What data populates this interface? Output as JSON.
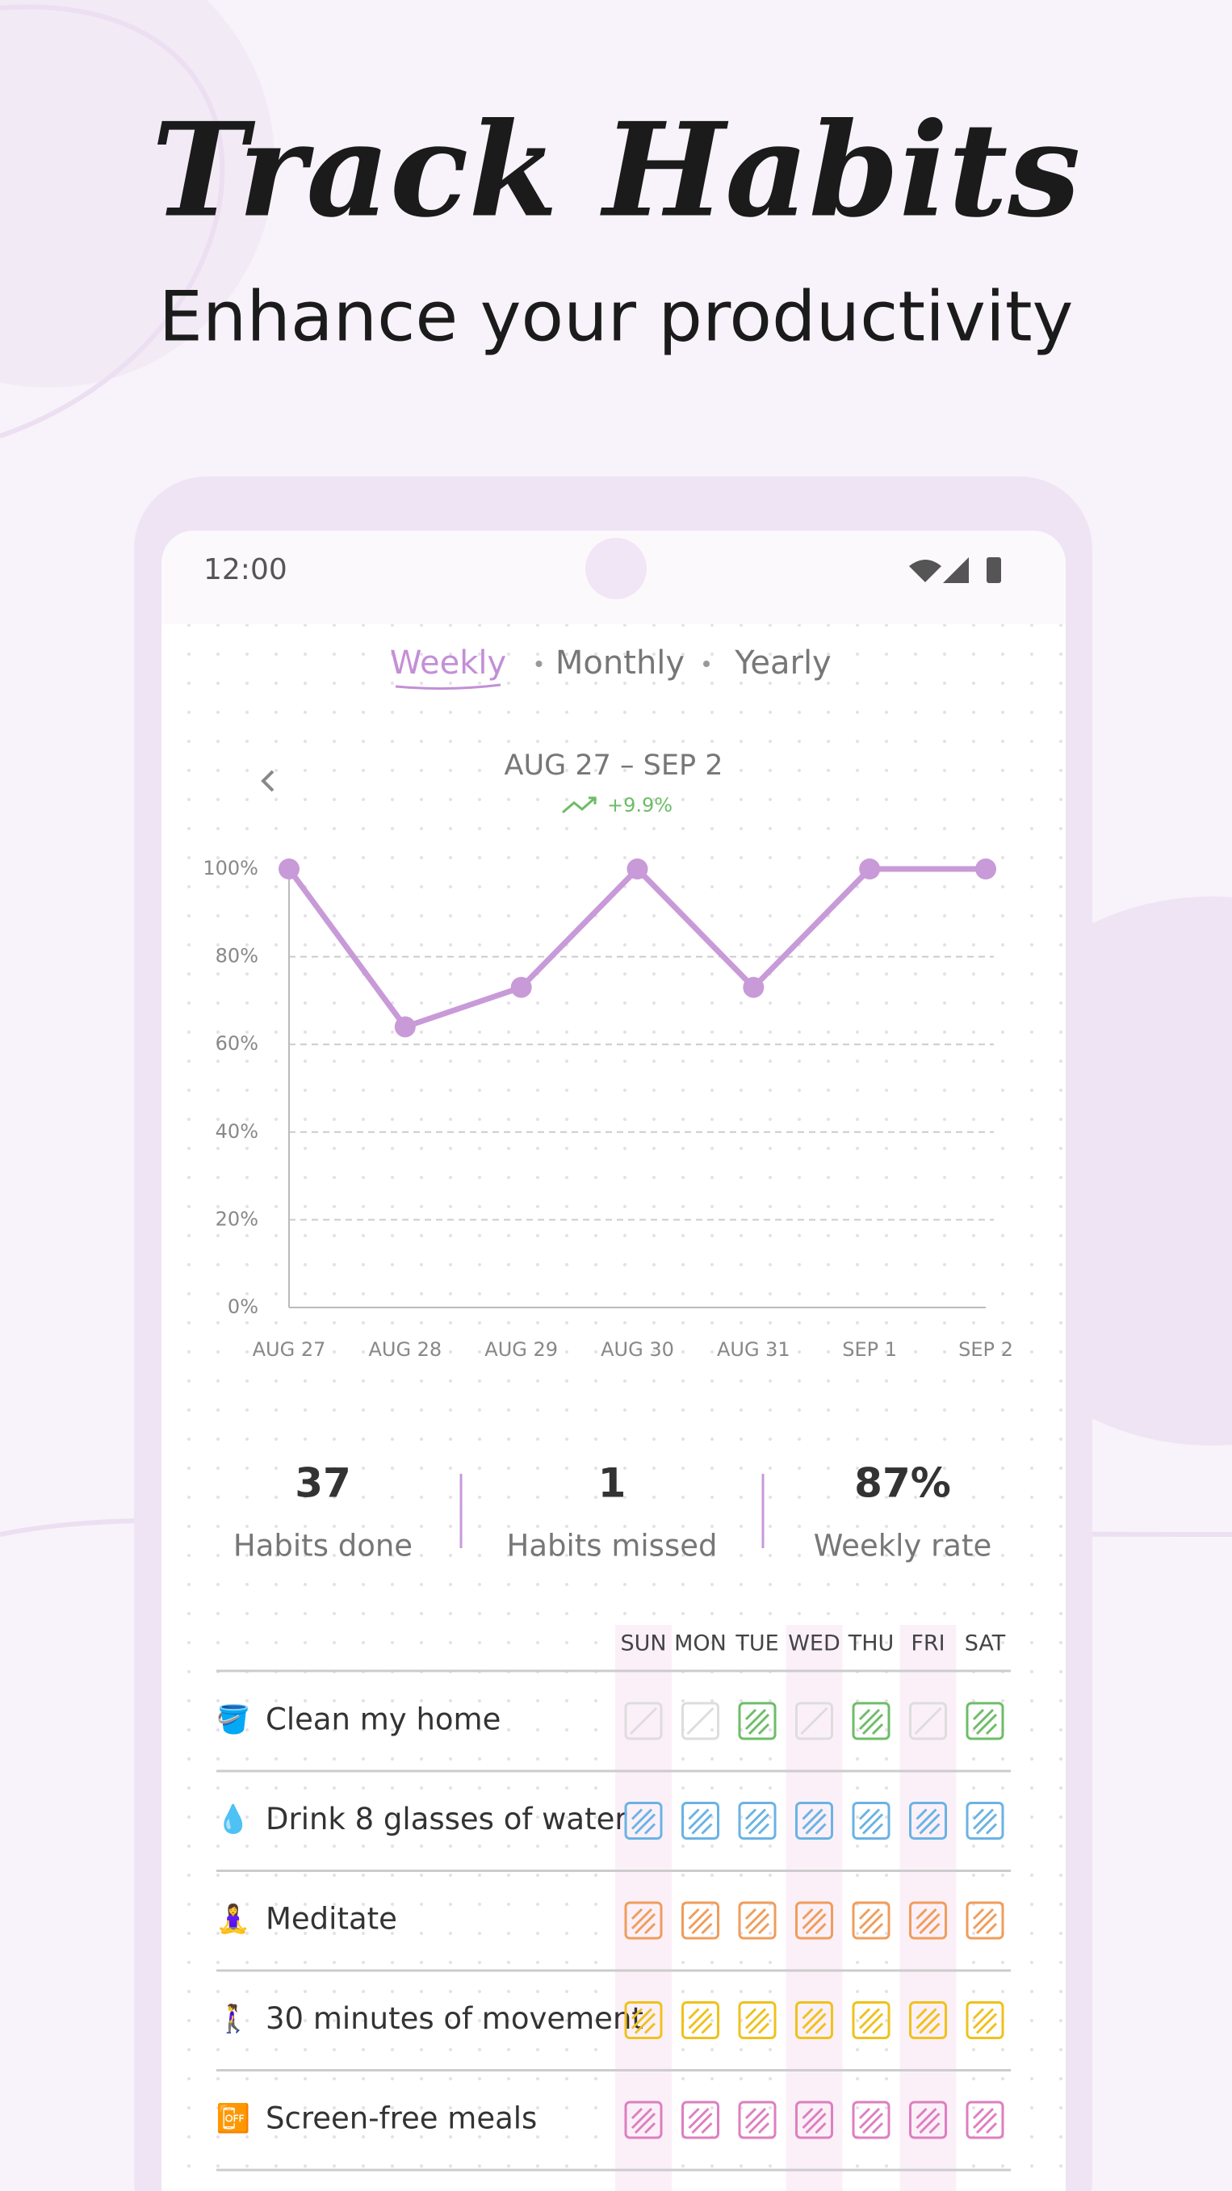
{
  "header": {
    "title": "Track Habits",
    "subtitle": "Enhance your productivity"
  },
  "status_bar": {
    "time": "12:00"
  },
  "tabs": [
    "Weekly",
    "Monthly",
    "Yearly"
  ],
  "chart_data": {
    "type": "line",
    "title": "AUG 27 – SEP 2",
    "annotation": "+9.9%",
    "categories": [
      "AUG 27",
      "AUG 28",
      "AUG 29",
      "AUG 30",
      "AUG 31",
      "SEP 1",
      "SEP 2"
    ],
    "values": [
      100,
      64,
      73,
      100,
      73,
      100,
      100
    ],
    "color": "#c89ad8",
    "ylim": [
      0,
      100
    ],
    "yticks": [
      {
        "value": 0,
        "label": "0%"
      },
      {
        "value": 20,
        "label": "20%"
      },
      {
        "value": 40,
        "label": "40%"
      },
      {
        "value": 60,
        "label": "60%"
      },
      {
        "value": 80,
        "label": "80%"
      },
      {
        "value": 100,
        "label": "100%"
      }
    ],
    "grid": true
  },
  "stats": [
    {
      "value": "37",
      "label": "Habits done"
    },
    {
      "value": "1",
      "label": "Habits missed"
    },
    {
      "value": "87%",
      "label": "Weekly rate"
    }
  ],
  "habits": {
    "days": [
      "SUN",
      "MON",
      "TUE",
      "WED",
      "THU",
      "FRI",
      "SAT"
    ],
    "rows": [
      {
        "emoji": "🪣",
        "name": "Clean my home",
        "color": "#6dbd67",
        "done": [
          false,
          false,
          true,
          false,
          true,
          false,
          true
        ]
      },
      {
        "emoji": "💧",
        "name": "Drink 8 glasses of water",
        "color": "#6ab3e4",
        "done": [
          true,
          true,
          true,
          true,
          true,
          true,
          true
        ]
      },
      {
        "emoji": "🧘‍♀️",
        "name": "Meditate",
        "color": "#ef9d5c",
        "done": [
          true,
          true,
          true,
          true,
          true,
          true,
          true
        ]
      },
      {
        "emoji": "🚶‍♀️",
        "name": "30 minutes of movement",
        "color": "#efc11e",
        "done": [
          true,
          true,
          true,
          true,
          true,
          true,
          true
        ]
      },
      {
        "emoji": "📴",
        "name": "Screen-free meals",
        "color": "#de7fbf",
        "done": [
          true,
          true,
          true,
          true,
          true,
          true,
          true
        ]
      }
    ]
  }
}
